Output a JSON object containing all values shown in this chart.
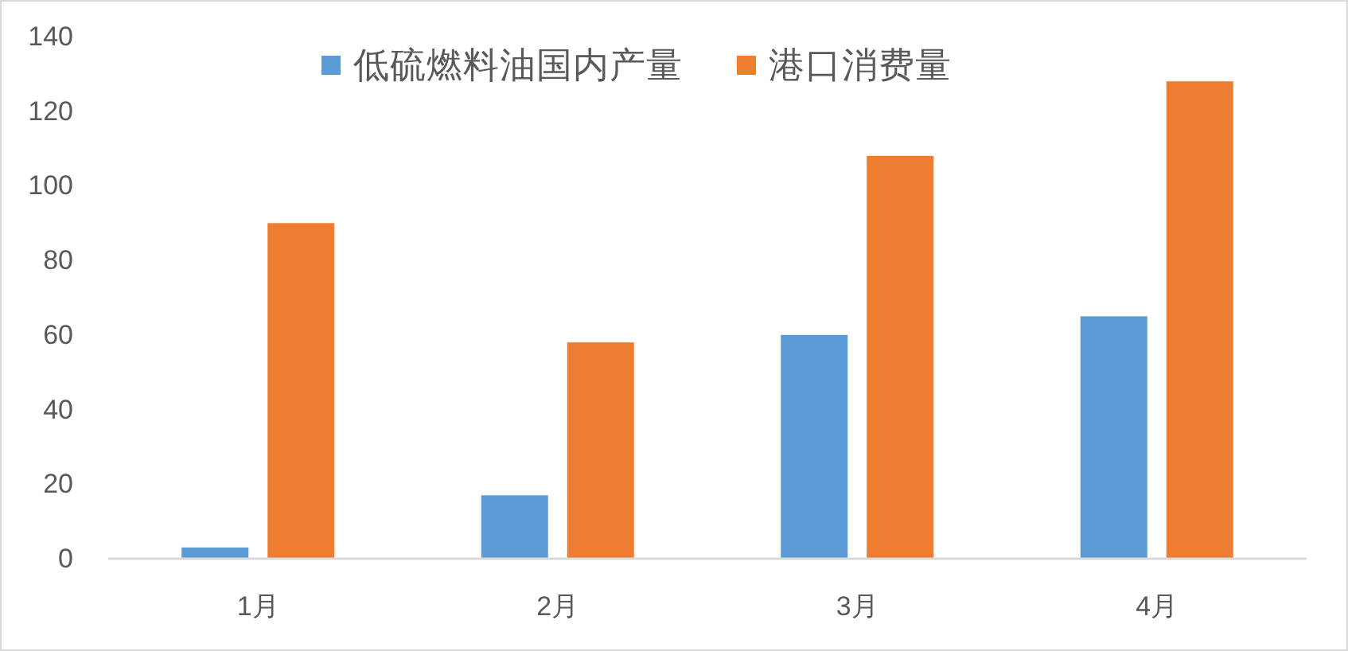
{
  "chart_data": {
    "type": "bar",
    "categories": [
      "1月",
      "2月",
      "3月",
      "4月"
    ],
    "series": [
      {
        "name": "低硫燃料油国内产量",
        "color": "#5b9bd5",
        "values": [
          3,
          17,
          60,
          65
        ]
      },
      {
        "name": "港口消费量",
        "color": "#ed7d31",
        "values": [
          90,
          58,
          108,
          128
        ]
      }
    ],
    "ylim": [
      0,
      140
    ],
    "yticks": [
      0,
      20,
      40,
      60,
      80,
      100,
      120,
      140
    ],
    "grid": false,
    "legend": "top"
  }
}
